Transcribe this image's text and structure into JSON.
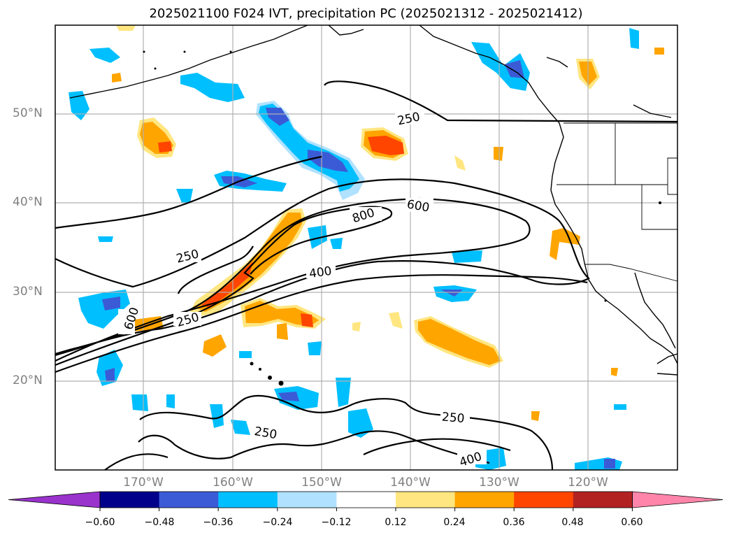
{
  "title": "2025021100 F024 IVT, precipitation PC (2025021312 - 2025021412)",
  "map": {
    "lat_labels": [
      "50°N",
      "40°N",
      "30°N",
      "20°N"
    ],
    "lon_labels": [
      "170°W",
      "160°W",
      "150°W",
      "140°W",
      "130°W",
      "120°W"
    ],
    "grid": true,
    "contour_labels": [
      "250",
      "250",
      "600",
      "250",
      "400",
      "800",
      "600",
      "250",
      "400",
      "250"
    ]
  },
  "colorbar": {
    "ticks": [
      "−0.60",
      "−0.48",
      "−0.36",
      "−0.24",
      "−0.12",
      "0.12",
      "0.24",
      "0.36",
      "0.48",
      "0.60"
    ],
    "colors": [
      "#9933cc",
      "#00008b",
      "#3b5bd6",
      "#00bfff",
      "#b0e2ff",
      "#ffffff",
      "#ffe680",
      "#ffa500",
      "#ff4500",
      "#b22222",
      "#ff85aa"
    ],
    "extend": "both"
  }
}
